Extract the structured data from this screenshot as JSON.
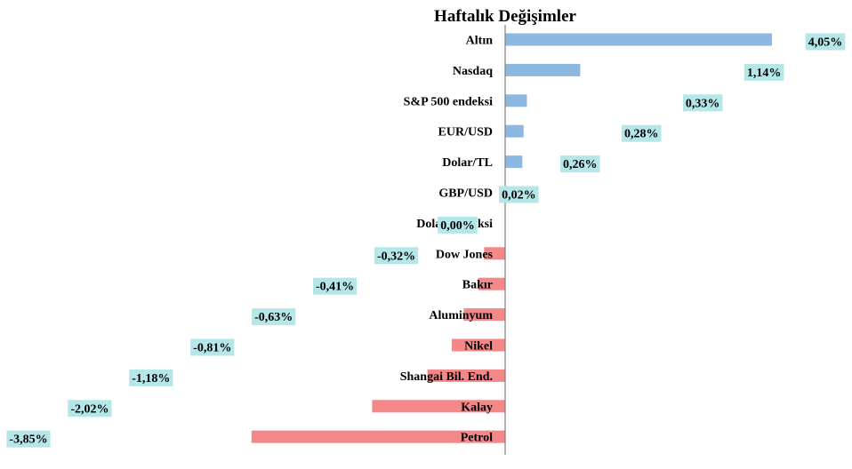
{
  "chart_data": {
    "type": "bar",
    "orientation": "horizontal",
    "title": "Haftalık Değişimler",
    "categories": [
      "Altın",
      "Nasdaq",
      "S&P 500 endeksi",
      "EUR/USD",
      "Dolar/TL",
      "GBP/USD",
      "Dolar Endeksi",
      "Dow Jones",
      "Bakır",
      "Aluminyum",
      "Nikel",
      "Shangai Bil. End.",
      "Kalay",
      "Petrol"
    ],
    "values": [
      4.05,
      1.14,
      0.33,
      0.28,
      0.26,
      0.02,
      0.0,
      -0.32,
      -0.41,
      -0.63,
      -0.81,
      -1.18,
      -2.02,
      -3.85
    ],
    "data_labels": [
      "4,05%",
      "1,14%",
      "0,33%",
      "0,28%",
      "0,26%",
      "0,02%",
      "0,00%",
      "-0,32%",
      "-0,41%",
      "-0,63%",
      "-0,81%",
      "-1,18%",
      "-2,02%",
      "-3,85%"
    ],
    "xlim": [
      -3.85,
      4.05
    ],
    "xlabel": "",
    "ylabel": "",
    "grid": false,
    "legend": "none",
    "colors": {
      "positive": "#8db8e2",
      "negative": "#f48788",
      "label_bg": "#b5e6e8",
      "axis": "#808080"
    }
  }
}
